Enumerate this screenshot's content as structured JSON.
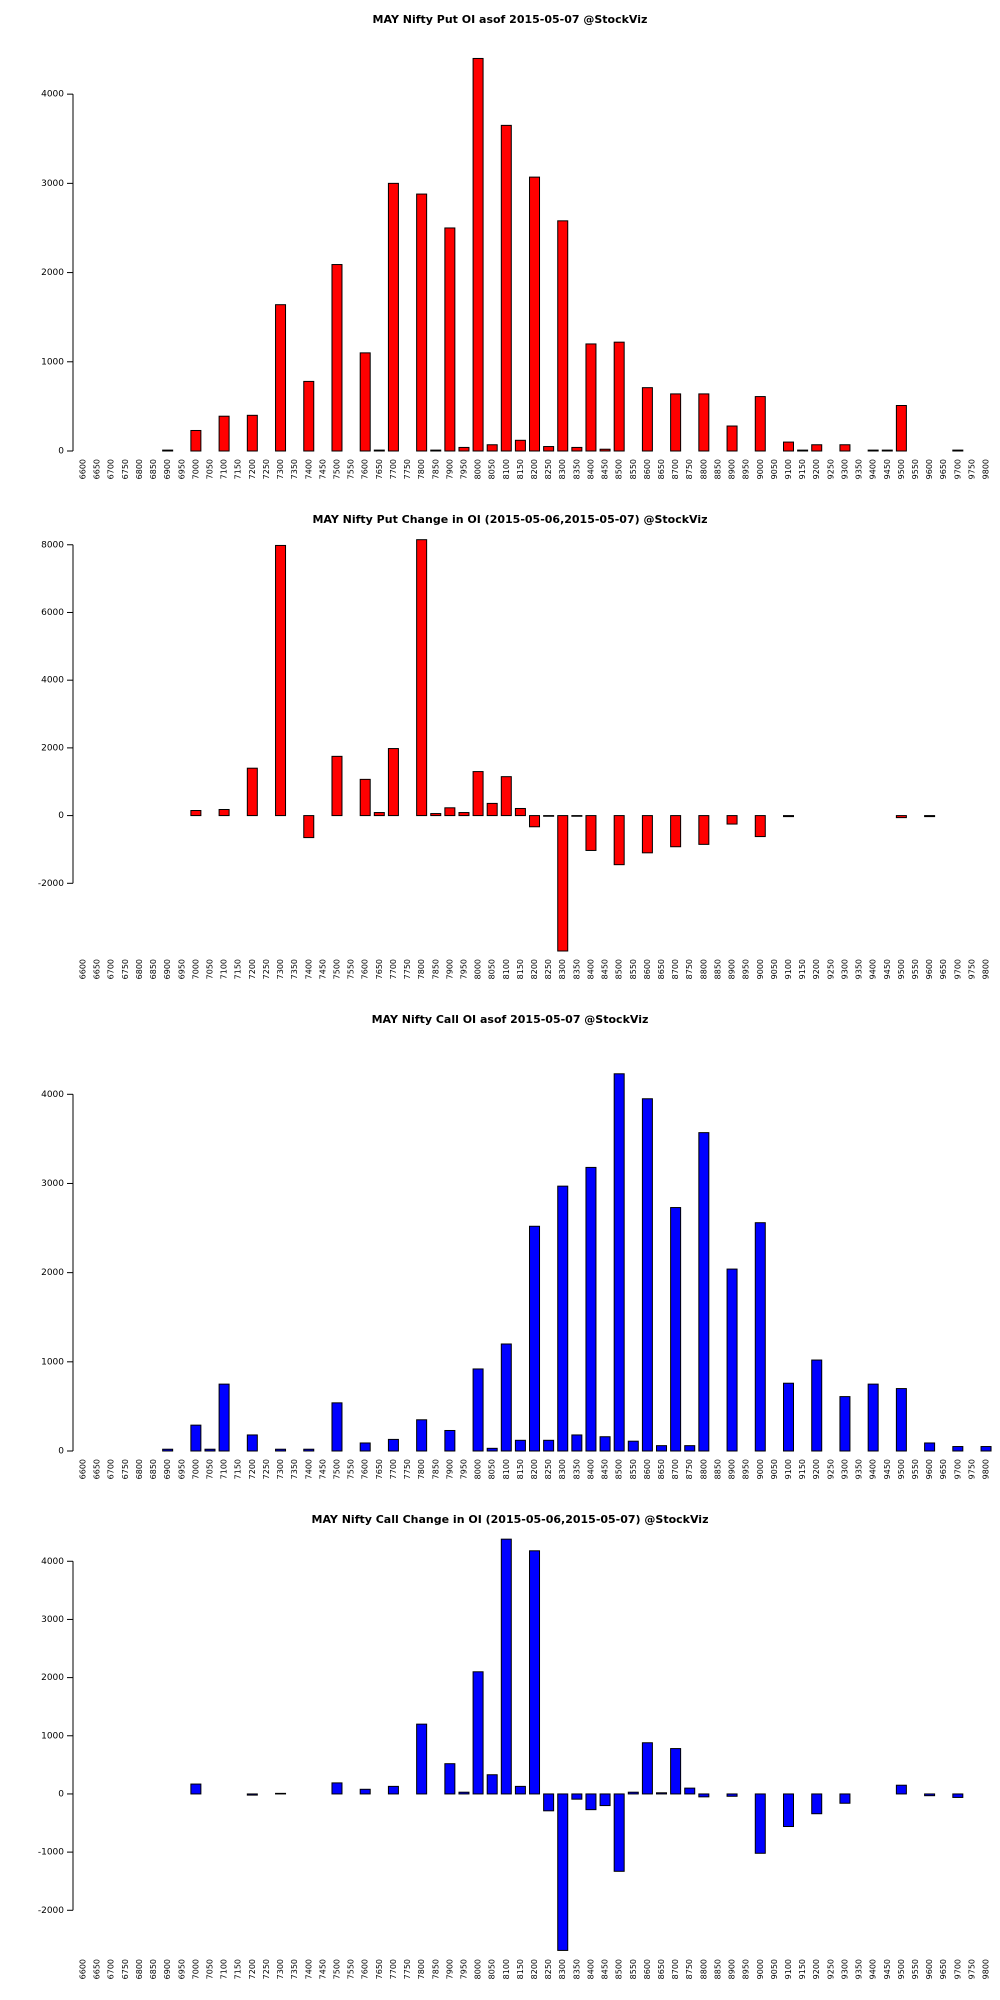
{
  "chart_data": [
    {
      "type": "bar",
      "title": "MAY Nifty Put OI asof 2015-05-07 @StockViz",
      "color": "#ff0000",
      "categories": [
        "6600",
        "6650",
        "6700",
        "6750",
        "6800",
        "6850",
        "6900",
        "6950",
        "7000",
        "7050",
        "7100",
        "7150",
        "7200",
        "7250",
        "7300",
        "7350",
        "7400",
        "7450",
        "7500",
        "7550",
        "7600",
        "7650",
        "7700",
        "7750",
        "7800",
        "7850",
        "7900",
        "7950",
        "8000",
        "8050",
        "8100",
        "8150",
        "8200",
        "8250",
        "8300",
        "8350",
        "8400",
        "8450",
        "8500",
        "8550",
        "8600",
        "8650",
        "8700",
        "8750",
        "8800",
        "8850",
        "8900",
        "8950",
        "9000",
        "9050",
        "9100",
        "9150",
        "9200",
        "9250",
        "9300",
        "9350",
        "9400",
        "9450",
        "9500",
        "9550",
        "9600",
        "9650",
        "9700",
        "9750",
        "9800"
      ],
      "values": [
        0,
        0,
        0,
        0,
        0,
        0,
        10,
        0,
        230,
        0,
        390,
        0,
        400,
        0,
        1640,
        0,
        780,
        0,
        2090,
        0,
        1100,
        10,
        3000,
        0,
        2880,
        10,
        2500,
        40,
        4400,
        70,
        3650,
        120,
        3070,
        50,
        2580,
        40,
        1200,
        20,
        1220,
        0,
        710,
        0,
        640,
        0,
        640,
        0,
        280,
        0,
        610,
        0,
        100,
        10,
        70,
        0,
        70,
        0,
        10,
        10,
        510,
        0,
        0,
        0,
        10,
        0,
        0
      ],
      "ylim": [
        0,
        4450
      ],
      "yticks": [
        0,
        1000,
        2000,
        3000,
        4000
      ]
    },
    {
      "type": "bar",
      "title": "MAY Nifty Put Change in OI (2015-05-06,2015-05-07) @StockViz",
      "color": "#ff0000",
      "categories": [
        "6600",
        "6650",
        "6700",
        "6750",
        "6800",
        "6850",
        "6900",
        "6950",
        "7000",
        "7050",
        "7100",
        "7150",
        "7200",
        "7250",
        "7300",
        "7350",
        "7400",
        "7450",
        "7500",
        "7550",
        "7600",
        "7650",
        "7700",
        "7750",
        "7800",
        "7850",
        "7900",
        "7950",
        "8000",
        "8050",
        "8100",
        "8150",
        "8200",
        "8250",
        "8300",
        "8350",
        "8400",
        "8450",
        "8500",
        "8550",
        "8600",
        "8650",
        "8700",
        "8750",
        "8800",
        "8850",
        "8900",
        "8950",
        "9000",
        "9050",
        "9100",
        "9150",
        "9200",
        "9250",
        "9300",
        "9350",
        "9400",
        "9450",
        "9500",
        "9550",
        "9600",
        "9650",
        "9700",
        "9750",
        "9800"
      ],
      "values": [
        0,
        0,
        0,
        0,
        0,
        0,
        0,
        0,
        150,
        0,
        180,
        0,
        1400,
        0,
        7980,
        0,
        -650,
        0,
        1750,
        0,
        1070,
        90,
        1980,
        0,
        8150,
        60,
        230,
        90,
        1300,
        360,
        1150,
        210,
        -330,
        -20,
        -4000,
        -20,
        -1030,
        0,
        -1450,
        0,
        -1100,
        0,
        -920,
        0,
        -850,
        0,
        -250,
        0,
        -620,
        0,
        -30,
        0,
        0,
        0,
        0,
        0,
        0,
        0,
        -60,
        0,
        -30,
        0,
        0,
        0,
        0
      ],
      "ylim": [
        -4000,
        8200
      ],
      "yticks": [
        -2000,
        0,
        2000,
        4000,
        6000,
        8000
      ]
    },
    {
      "type": "bar",
      "title": "MAY Nifty Call OI asof 2015-05-07 @StockViz",
      "color": "#0000ff",
      "categories": [
        "6600",
        "6650",
        "6700",
        "6750",
        "6800",
        "6850",
        "6900",
        "6950",
        "7000",
        "7050",
        "7100",
        "7150",
        "7200",
        "7250",
        "7300",
        "7350",
        "7400",
        "7450",
        "7500",
        "7550",
        "7600",
        "7650",
        "7700",
        "7750",
        "7800",
        "7850",
        "7900",
        "7950",
        "8000",
        "8050",
        "8100",
        "8150",
        "8200",
        "8250",
        "8300",
        "8350",
        "8400",
        "8450",
        "8500",
        "8550",
        "8600",
        "8650",
        "8700",
        "8750",
        "8800",
        "8850",
        "8900",
        "8950",
        "9000",
        "9050",
        "9100",
        "9150",
        "9200",
        "9250",
        "9300",
        "9350",
        "9400",
        "9450",
        "9500",
        "9550",
        "9600",
        "9650",
        "9700",
        "9750",
        "9800"
      ],
      "values": [
        0,
        0,
        0,
        0,
        0,
        0,
        20,
        0,
        290,
        20,
        750,
        0,
        180,
        0,
        20,
        0,
        20,
        0,
        540,
        0,
        90,
        0,
        130,
        0,
        350,
        0,
        230,
        0,
        920,
        30,
        1200,
        120,
        2520,
        120,
        2970,
        180,
        3180,
        160,
        4230,
        110,
        3950,
        60,
        2730,
        60,
        3570,
        0,
        2040,
        0,
        2560,
        0,
        760,
        0,
        1020,
        0,
        610,
        0,
        750,
        0,
        700,
        0,
        90,
        0,
        50,
        0,
        50
      ],
      "ylim": [
        0,
        4250
      ],
      "yticks": [
        0,
        1000,
        2000,
        3000,
        4000
      ]
    },
    {
      "type": "bar",
      "title": "MAY Nifty Call Change in OI (2015-05-06,2015-05-07) @StockViz",
      "color": "#0000ff",
      "categories": [
        "6600",
        "6650",
        "6700",
        "6750",
        "6800",
        "6850",
        "6900",
        "6950",
        "7000",
        "7050",
        "7100",
        "7150",
        "7200",
        "7250",
        "7300",
        "7350",
        "7400",
        "7450",
        "7500",
        "7550",
        "7600",
        "7650",
        "7700",
        "7750",
        "7800",
        "7850",
        "7900",
        "7950",
        "8000",
        "8050",
        "8100",
        "8150",
        "8200",
        "8250",
        "8300",
        "8350",
        "8400",
        "8450",
        "8500",
        "8550",
        "8600",
        "8650",
        "8700",
        "8750",
        "8800",
        "8850",
        "8900",
        "8950",
        "9000",
        "9050",
        "9100",
        "9150",
        "9200",
        "9250",
        "9300",
        "9350",
        "9400",
        "9450",
        "9500",
        "9550",
        "9600",
        "9650",
        "9700",
        "9750",
        "9800"
      ],
      "values": [
        0,
        0,
        0,
        0,
        0,
        0,
        0,
        0,
        170,
        0,
        0,
        0,
        -20,
        0,
        10,
        0,
        0,
        0,
        190,
        0,
        80,
        0,
        130,
        0,
        1200,
        0,
        520,
        30,
        2100,
        330,
        4380,
        130,
        4180,
        -290,
        -2690,
        -90,
        -270,
        -200,
        -1330,
        30,
        880,
        20,
        780,
        100,
        -50,
        0,
        -40,
        0,
        -1020,
        0,
        -560,
        0,
        -340,
        0,
        -160,
        0,
        0,
        0,
        150,
        0,
        -30,
        0,
        -60,
        0,
        0
      ],
      "ylim": [
        -2700,
        4400
      ],
      "yticks": [
        -2000,
        -1000,
        0,
        1000,
        2000,
        3000,
        4000
      ]
    }
  ]
}
